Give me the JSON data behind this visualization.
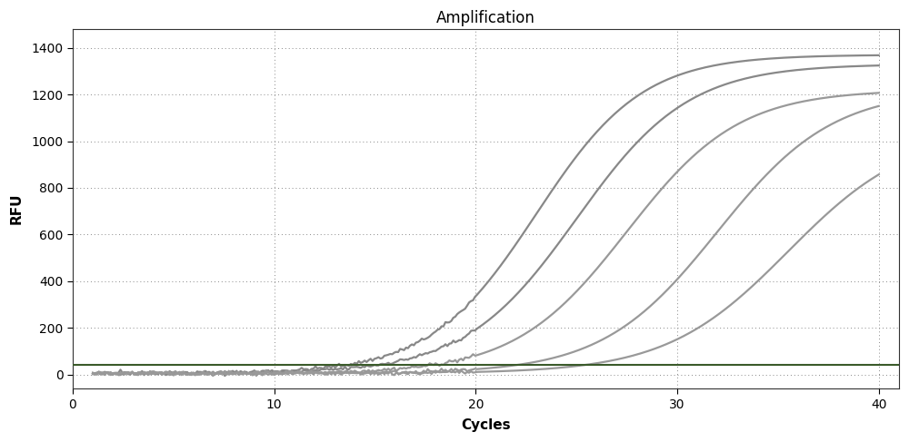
{
  "title": "Amplification",
  "xlabel": "Cycles",
  "ylabel": "RFU",
  "xlim": [
    0,
    41
  ],
  "ylim": [
    -60,
    1480
  ],
  "yticks": [
    0,
    200,
    400,
    600,
    800,
    1000,
    1200,
    1400
  ],
  "xticks": [
    0,
    10,
    20,
    30,
    40
  ],
  "background_color": "#ffffff",
  "grid_color": "#888888",
  "threshold_y": 40,
  "threshold_color": "#3a5a2a",
  "threshold_linewidth": 1.5,
  "curves": [
    {
      "midpoint": 23.0,
      "rate": 0.38,
      "plateau": 1370,
      "baseline": 5,
      "color": "#888888"
    },
    {
      "midpoint": 25.0,
      "rate": 0.36,
      "plateau": 1330,
      "baseline": 5,
      "color": "#888888"
    },
    {
      "midpoint": 27.5,
      "rate": 0.36,
      "plateau": 1220,
      "baseline": 5,
      "color": "#999999"
    },
    {
      "midpoint": 32.0,
      "rate": 0.35,
      "plateau": 1220,
      "baseline": 5,
      "color": "#999999"
    },
    {
      "midpoint": 35.5,
      "rate": 0.33,
      "plateau": 1050,
      "baseline": 5,
      "color": "#999999"
    }
  ],
  "line_width": 1.6,
  "title_fontsize": 12,
  "label_fontsize": 11,
  "tick_fontsize": 10,
  "figsize": [
    10.0,
    4.87
  ],
  "dpi": 100
}
